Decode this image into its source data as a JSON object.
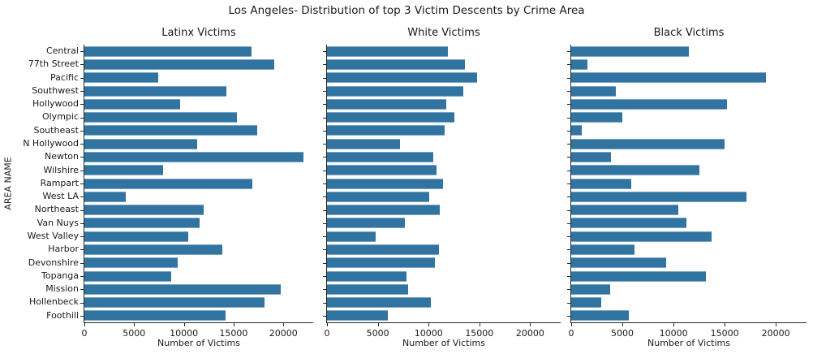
{
  "chart_data": {
    "type": "bar",
    "orientation": "horizontal",
    "suptitle": "Los Angeles- Distribution of top 3 Victim Descents by Crime Area",
    "xlabel": "Number of Victims",
    "ylabel": "AREA NAME",
    "xlim": [
      0,
      23000
    ],
    "xticks": [
      0,
      5000,
      10000,
      15000,
      20000
    ],
    "grid": false,
    "legend": false,
    "bar_color": "#3274a1",
    "categories": [
      "Central",
      "77th Street",
      "Pacific",
      "Southwest",
      "Hollywood",
      "Olympic",
      "Southeast",
      "N Hollywood",
      "Newton",
      "Wilshire",
      "Rampart",
      "West LA",
      "Northeast",
      "Van Nuys",
      "West Valley",
      "Harbor",
      "Devonshire",
      "Topanga",
      "Mission",
      "Hollenbeck",
      "Foothill"
    ],
    "subplots": [
      {
        "title": "Latinx Victims",
        "values": [
          16800,
          19100,
          7400,
          14300,
          9600,
          15300,
          17400,
          11300,
          22000,
          7900,
          16900,
          4200,
          12000,
          11600,
          10400,
          13900,
          9400,
          8700,
          19700,
          18100,
          14200
        ]
      },
      {
        "title": "White Victims",
        "values": [
          11900,
          13600,
          14800,
          13400,
          11700,
          12500,
          11600,
          7200,
          10500,
          10800,
          11400,
          10100,
          11100,
          7700,
          4800,
          11000,
          10600,
          7800,
          8000,
          10200,
          6000
        ]
      },
      {
        "title": "Black Victims",
        "values": [
          11500,
          1600,
          19000,
          4400,
          15200,
          5000,
          1000,
          15000,
          3900,
          12500,
          5900,
          17100,
          10500,
          11300,
          13700,
          6200,
          9300,
          13200,
          3800,
          2900,
          5600
        ]
      }
    ]
  }
}
